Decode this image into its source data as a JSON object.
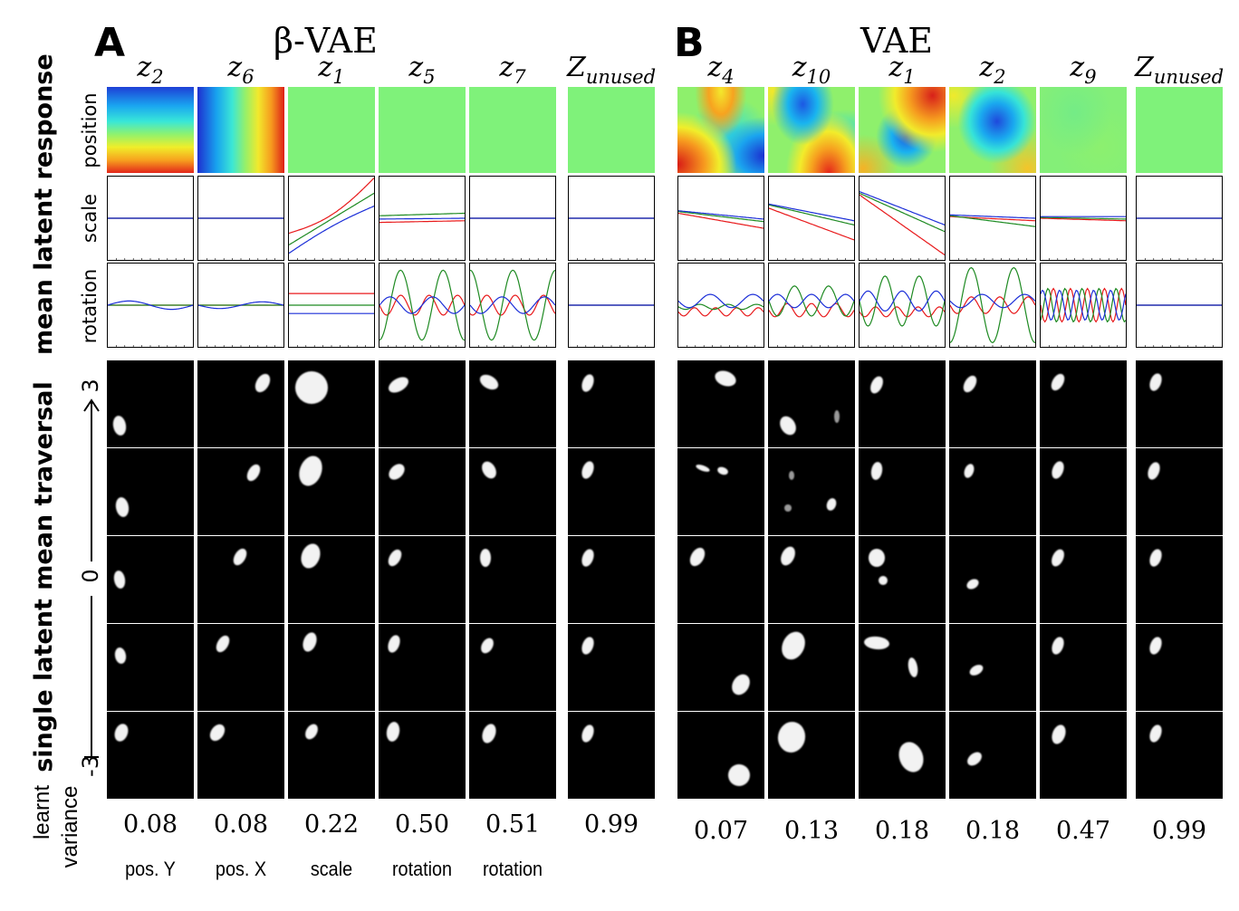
{
  "panelA": {
    "letter": "A",
    "title": "β-VAE",
    "columns": [
      {
        "z": "z",
        "sub": "2",
        "variance": "0.08",
        "factor": "pos. Y"
      },
      {
        "z": "z",
        "sub": "6",
        "variance": "0.08",
        "factor": "pos. X"
      },
      {
        "z": "z",
        "sub": "1",
        "variance": "0.22",
        "factor": "scale"
      },
      {
        "z": "z",
        "sub": "5",
        "variance": "0.50",
        "factor": "rotation"
      },
      {
        "z": "z",
        "sub": "7",
        "variance": "0.51",
        "factor": "rotation"
      },
      {
        "z": "Z",
        "sub": "unused",
        "variance": "0.99",
        "factor": ""
      }
    ]
  },
  "panelB": {
    "letter": "B",
    "title": "VAE",
    "columns": [
      {
        "z": "z",
        "sub": "4",
        "variance": "0.07"
      },
      {
        "z": "z",
        "sub": "10",
        "variance": "0.13"
      },
      {
        "z": "z",
        "sub": "1",
        "variance": "0.18"
      },
      {
        "z": "z",
        "sub": "2",
        "variance": "0.18"
      },
      {
        "z": "z",
        "sub": "9",
        "variance": "0.47"
      },
      {
        "z": "Z",
        "sub": "unused",
        "variance": "0.99"
      }
    ]
  },
  "labels": {
    "mean_latent_response": "mean latent response",
    "single_latent_traversal": "single latent mean traversal",
    "position": "position",
    "scale": "scale",
    "rotation": "rotation",
    "learnt": "learnt",
    "variance": "variance",
    "axis_top": "3",
    "axis_mid": "0",
    "axis_bottom": "-3"
  },
  "colors": {
    "curve_red": "#e8191b",
    "curve_green": "#1e8a22",
    "curve_blue": "#1b2ed8",
    "heat_flat": "#7ff27a"
  }
}
